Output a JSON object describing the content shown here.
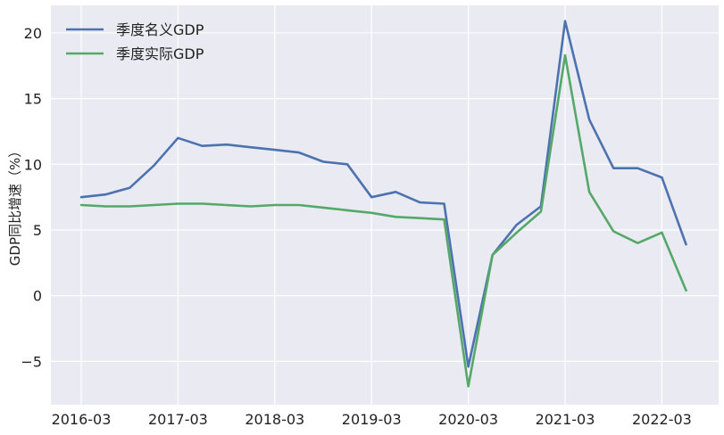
{
  "chart_data": {
    "type": "line",
    "title": "",
    "xlabel": "",
    "ylabel": "GDP同比增速（%）",
    "ylim": [
      -8.3,
      22.1
    ],
    "yticks": [
      -5,
      0,
      5,
      10,
      15,
      20
    ],
    "ytick_labels": [
      "−5",
      "0",
      "5",
      "10",
      "15",
      "20"
    ],
    "xticks": [
      "2016-03",
      "2017-03",
      "2018-03",
      "2019-03",
      "2020-03",
      "2021-03",
      "2022-03"
    ],
    "x": [
      "2016-03",
      "2016-06",
      "2016-09",
      "2016-12",
      "2017-03",
      "2017-06",
      "2017-09",
      "2017-12",
      "2018-03",
      "2018-06",
      "2018-09",
      "2018-12",
      "2019-03",
      "2019-06",
      "2019-09",
      "2019-12",
      "2020-03",
      "2020-06",
      "2020-09",
      "2020-12",
      "2021-03",
      "2021-06",
      "2021-09",
      "2021-12",
      "2022-03",
      "2022-06"
    ],
    "grid": true,
    "background": "#EAEAF2",
    "legend_position": "top-left",
    "series": [
      {
        "name": "季度名义GDP",
        "color": "#4C72B0",
        "values": [
          7.5,
          7.7,
          8.2,
          9.9,
          12.0,
          11.4,
          11.5,
          11.3,
          11.1,
          10.9,
          10.2,
          10.0,
          7.5,
          7.9,
          7.1,
          7.0,
          -5.4,
          3.1,
          5.4,
          6.8,
          20.9,
          13.4,
          9.7,
          9.7,
          9.0,
          3.9
        ]
      },
      {
        "name": "季度实际GDP",
        "color": "#55A868",
        "values": [
          6.9,
          6.8,
          6.8,
          6.9,
          7.0,
          7.0,
          6.9,
          6.8,
          6.9,
          6.9,
          6.7,
          6.5,
          6.3,
          6.0,
          5.9,
          5.8,
          -6.9,
          3.1,
          4.8,
          6.4,
          18.3,
          7.9,
          4.9,
          4.0,
          4.8,
          0.4
        ]
      }
    ]
  }
}
